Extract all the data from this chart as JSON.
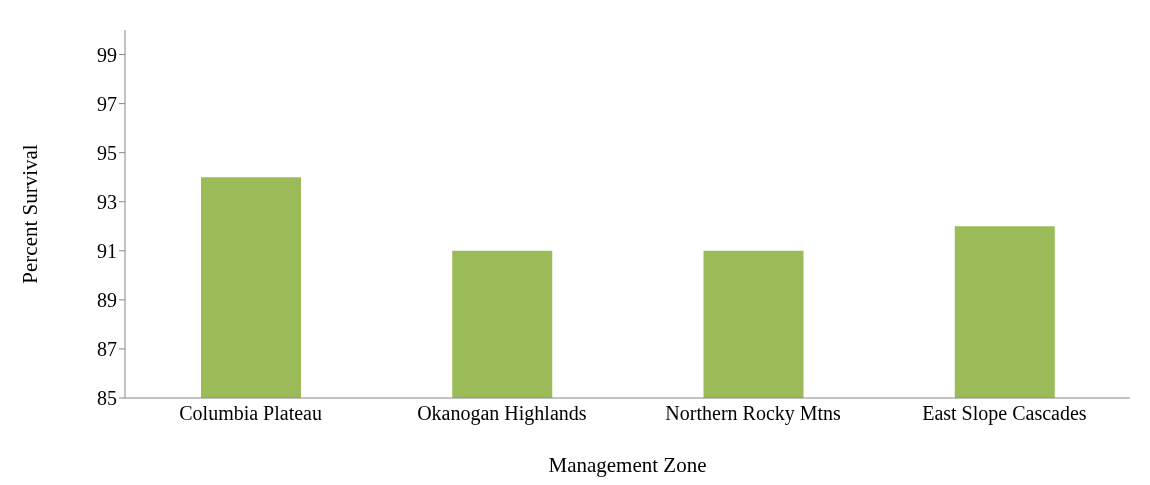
{
  "chart_data": {
    "type": "bar",
    "categories": [
      "Columbia Plateau",
      "Okanogan Highlands",
      "Northern Rocky Mtns",
      "East Slope Cascades"
    ],
    "values": [
      94,
      91,
      91,
      92
    ],
    "color": "#9bbb59",
    "xlabel": "Management Zone",
    "ylabel": "Percent Survival",
    "ylim": [
      85,
      100
    ],
    "yticks": [
      85,
      87,
      89,
      91,
      93,
      95,
      97,
      99
    ],
    "grid": false,
    "legend": false
  }
}
